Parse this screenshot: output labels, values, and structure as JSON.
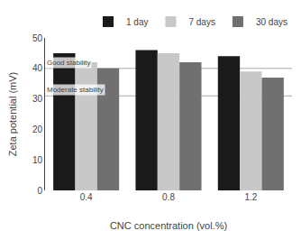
{
  "chart_data": {
    "type": "bar",
    "categories": [
      "0.4",
      "0.8",
      "1.2"
    ],
    "series": [
      {
        "name": "1 day",
        "color": "#1a1a1a",
        "values": [
          45,
          46,
          44
        ]
      },
      {
        "name": "7 days",
        "color": "#c8c8c8",
        "values": [
          42,
          45,
          39
        ]
      },
      {
        "name": "30 days",
        "color": "#707070",
        "values": [
          40,
          42,
          37
        ]
      }
    ],
    "xlabel": "CNC concentration (vol.%)",
    "ylabel": "Zeta potential (mV)",
    "ylim": [
      0,
      50
    ],
    "yticks": [
      0,
      10,
      20,
      30,
      40,
      50
    ],
    "annotations": [
      {
        "text": "Good stability",
        "y": 40,
        "color": "#aaaaaa"
      },
      {
        "text": "Moderate stability",
        "y": 31,
        "color": "#aaaaaa"
      }
    ],
    "legend": "upper right",
    "grid": false
  }
}
